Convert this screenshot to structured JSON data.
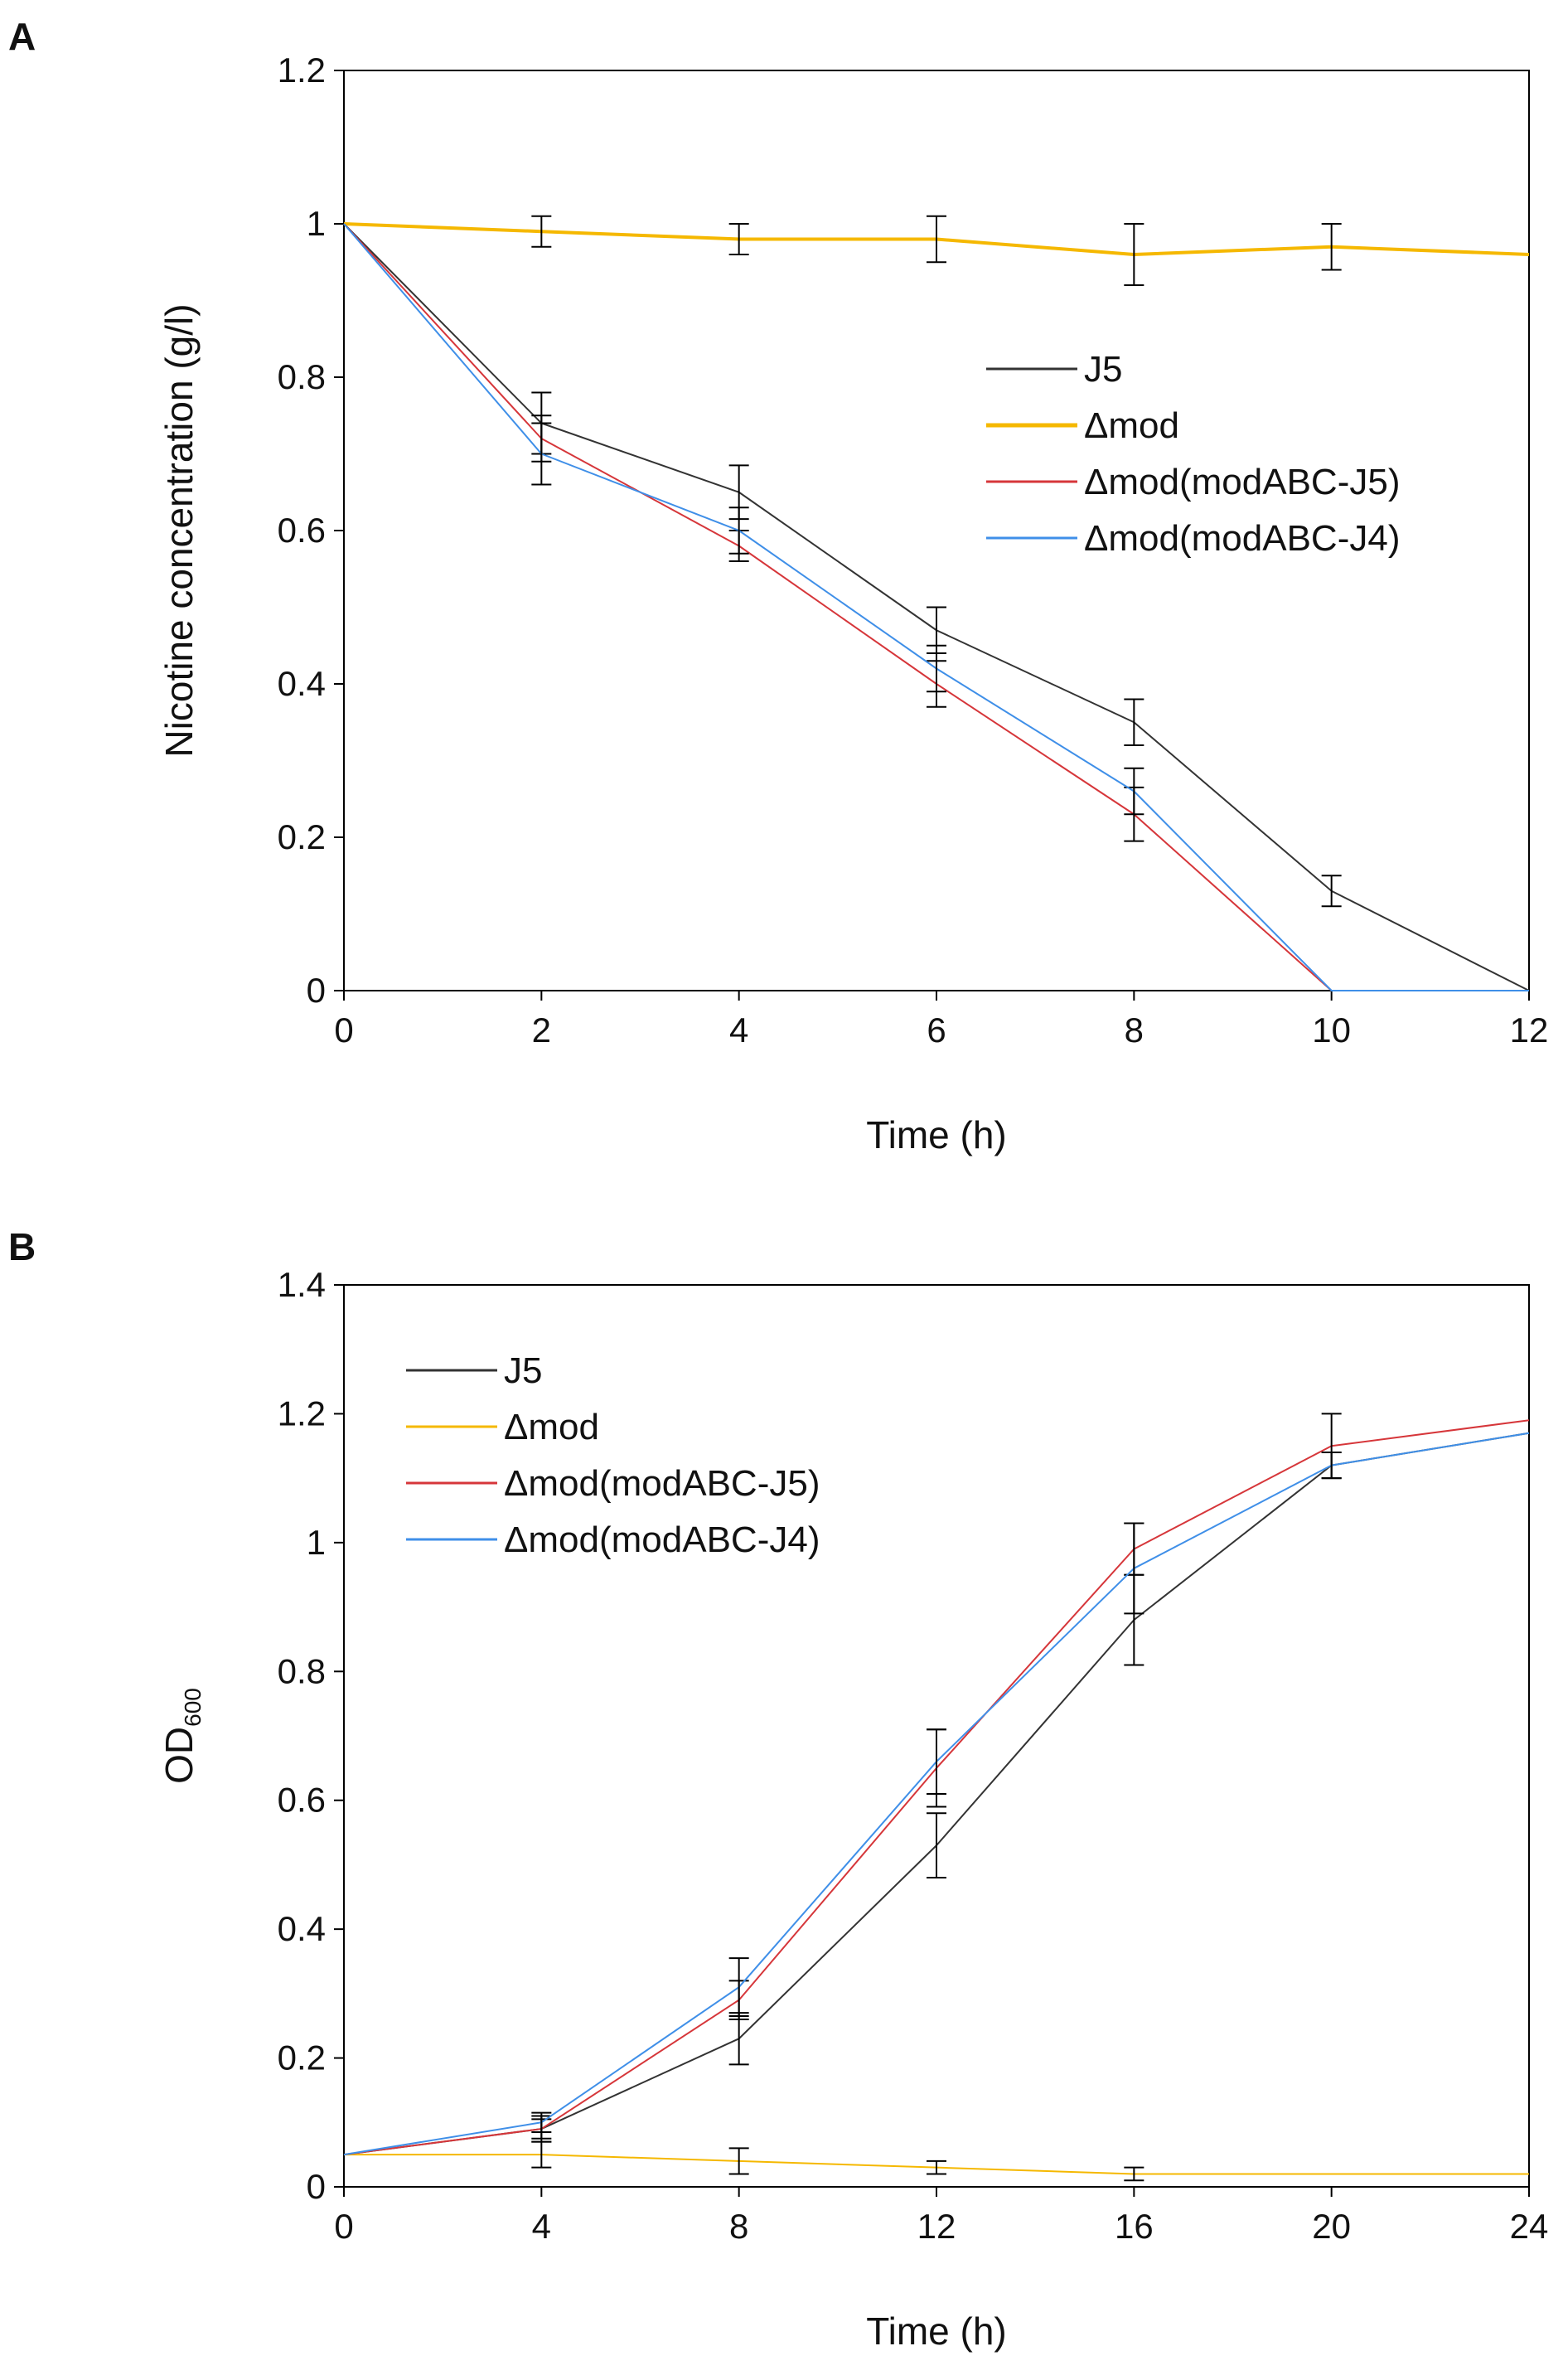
{
  "chart_data": [
    {
      "panel": "A",
      "type": "line",
      "title": "",
      "xlabel": "Time (h)",
      "ylabel": "Nicotine concentration (g/l)",
      "x": [
        0,
        2,
        4,
        6,
        8,
        10,
        12
      ],
      "xlim": [
        0,
        12
      ],
      "ylim": [
        0,
        1.2
      ],
      "xticks": [
        "0",
        "2",
        "4",
        "6",
        "8",
        "10",
        "12"
      ],
      "yticks": [
        "0",
        "0.2",
        "0.4",
        "0.6",
        "0.8",
        "1",
        "1.2"
      ],
      "grid": false,
      "legend_position": "center-right",
      "series": [
        {
          "name": "J5",
          "color": "#333333",
          "width": 2,
          "values": [
            1.0,
            0.74,
            0.65,
            0.47,
            0.35,
            0.13,
            0.0
          ],
          "errors": [
            0,
            0.04,
            0.035,
            0.03,
            0.03,
            0.02,
            0
          ]
        },
        {
          "name": "Δmod",
          "color": "#F5B800",
          "width": 4,
          "values": [
            1.0,
            0.99,
            0.98,
            0.98,
            0.96,
            0.97,
            0.96
          ],
          "errors": [
            0,
            0.02,
            0.02,
            0.03,
            0.04,
            0.03,
            0
          ]
        },
        {
          "name": "Δmod(modABC-J5)",
          "color": "#D6363A",
          "width": 2,
          "values": [
            1.0,
            0.72,
            0.58,
            0.4,
            0.23,
            0.0,
            0.0
          ],
          "errors": [
            0,
            0.03,
            0.02,
            0.03,
            0.035,
            0,
            0
          ]
        },
        {
          "name": "Δmod(modABC-J4)",
          "color": "#3F8FE8",
          "width": 2,
          "values": [
            1.0,
            0.7,
            0.6,
            0.42,
            0.26,
            0.0,
            0.0
          ],
          "errors": [
            0,
            0.04,
            0.03,
            0.03,
            0.03,
            0,
            0
          ]
        }
      ]
    },
    {
      "panel": "B",
      "type": "line",
      "title": "",
      "xlabel": "Time (h)",
      "ylabel": "OD",
      "ylabel_subscript": "600",
      "x": [
        0,
        4,
        8,
        12,
        16,
        20,
        24
      ],
      "xlim": [
        0,
        24
      ],
      "ylim": [
        0,
        1.4
      ],
      "xticks": [
        "0",
        "4",
        "8",
        "12",
        "16",
        "20",
        "24"
      ],
      "yticks": [
        "0",
        "0.2",
        "0.4",
        "0.6",
        "0.8",
        "1",
        "1.2",
        "1.4"
      ],
      "grid": false,
      "legend_position": "top-left",
      "series": [
        {
          "name": "J5",
          "color": "#333333",
          "width": 2,
          "values": [
            0.05,
            0.09,
            0.23,
            0.53,
            0.88,
            1.12,
            1.17
          ],
          "errors": [
            0,
            0.02,
            0.04,
            0.05,
            0.07,
            0.02,
            0
          ]
        },
        {
          "name": "Δmod",
          "color": "#F5B800",
          "width": 2,
          "values": [
            0.05,
            0.05,
            0.04,
            0.03,
            0.02,
            0.02,
            0.02
          ],
          "errors": [
            0,
            0.02,
            0.02,
            0.01,
            0.01,
            0,
            0
          ]
        },
        {
          "name": "Δmod(modABC-J5)",
          "color": "#D6363A",
          "width": 2,
          "values": [
            0.05,
            0.09,
            0.29,
            0.65,
            0.99,
            1.15,
            1.19
          ],
          "errors": [
            0,
            0.015,
            0.03,
            0.06,
            0.04,
            0.05,
            0
          ]
        },
        {
          "name": "Δmod(modABC-J4)",
          "color": "#3F8FE8",
          "width": 2,
          "values": [
            0.05,
            0.1,
            0.31,
            0.66,
            0.96,
            1.12,
            1.17
          ],
          "errors": [
            0,
            0.015,
            0.045,
            0.05,
            0.07,
            0.02,
            0
          ]
        }
      ]
    }
  ]
}
